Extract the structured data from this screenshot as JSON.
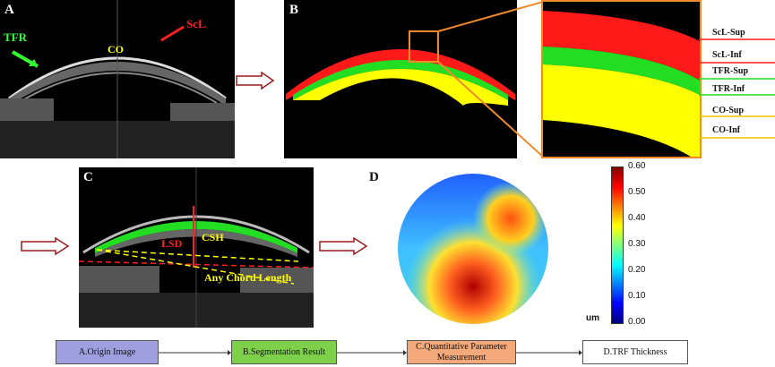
{
  "panels": {
    "a": {
      "letter": "A",
      "labels": {
        "tfr": "TFR",
        "scl": "ScL",
        "co": "CO"
      }
    },
    "b": {
      "letter": "B",
      "layers": [
        "ScL-Sup",
        "ScL-Inf",
        "TFR-Sup",
        "TFR-Inf",
        "CO-Sup",
        "CO-Inf"
      ]
    },
    "c": {
      "letter": "C",
      "labels": {
        "lsd": "LSD",
        "csh": "CSH",
        "chord": "Any Chord Length"
      }
    },
    "d": {
      "letter": "D",
      "colorbar": {
        "ticks": [
          "0.60",
          "0.50",
          "0.40",
          "0.30",
          "0.20",
          "0.10",
          "0.00"
        ],
        "unit": "um"
      }
    }
  },
  "layer_colors": {
    "scl": "#ff1a1a",
    "tfr": "#22dd22",
    "co": "#ffff00"
  },
  "flow": [
    {
      "label": "A.Origin Image",
      "color": "#9f9fe0"
    },
    {
      "label": "B.Segmentation Result",
      "color": "#7ed04b"
    },
    {
      "label": "C.Quantitative Parameter Measurement",
      "color": "#f4a97a"
    },
    {
      "label": "D.TRF Thickness",
      "color": "#ffffff"
    }
  ]
}
